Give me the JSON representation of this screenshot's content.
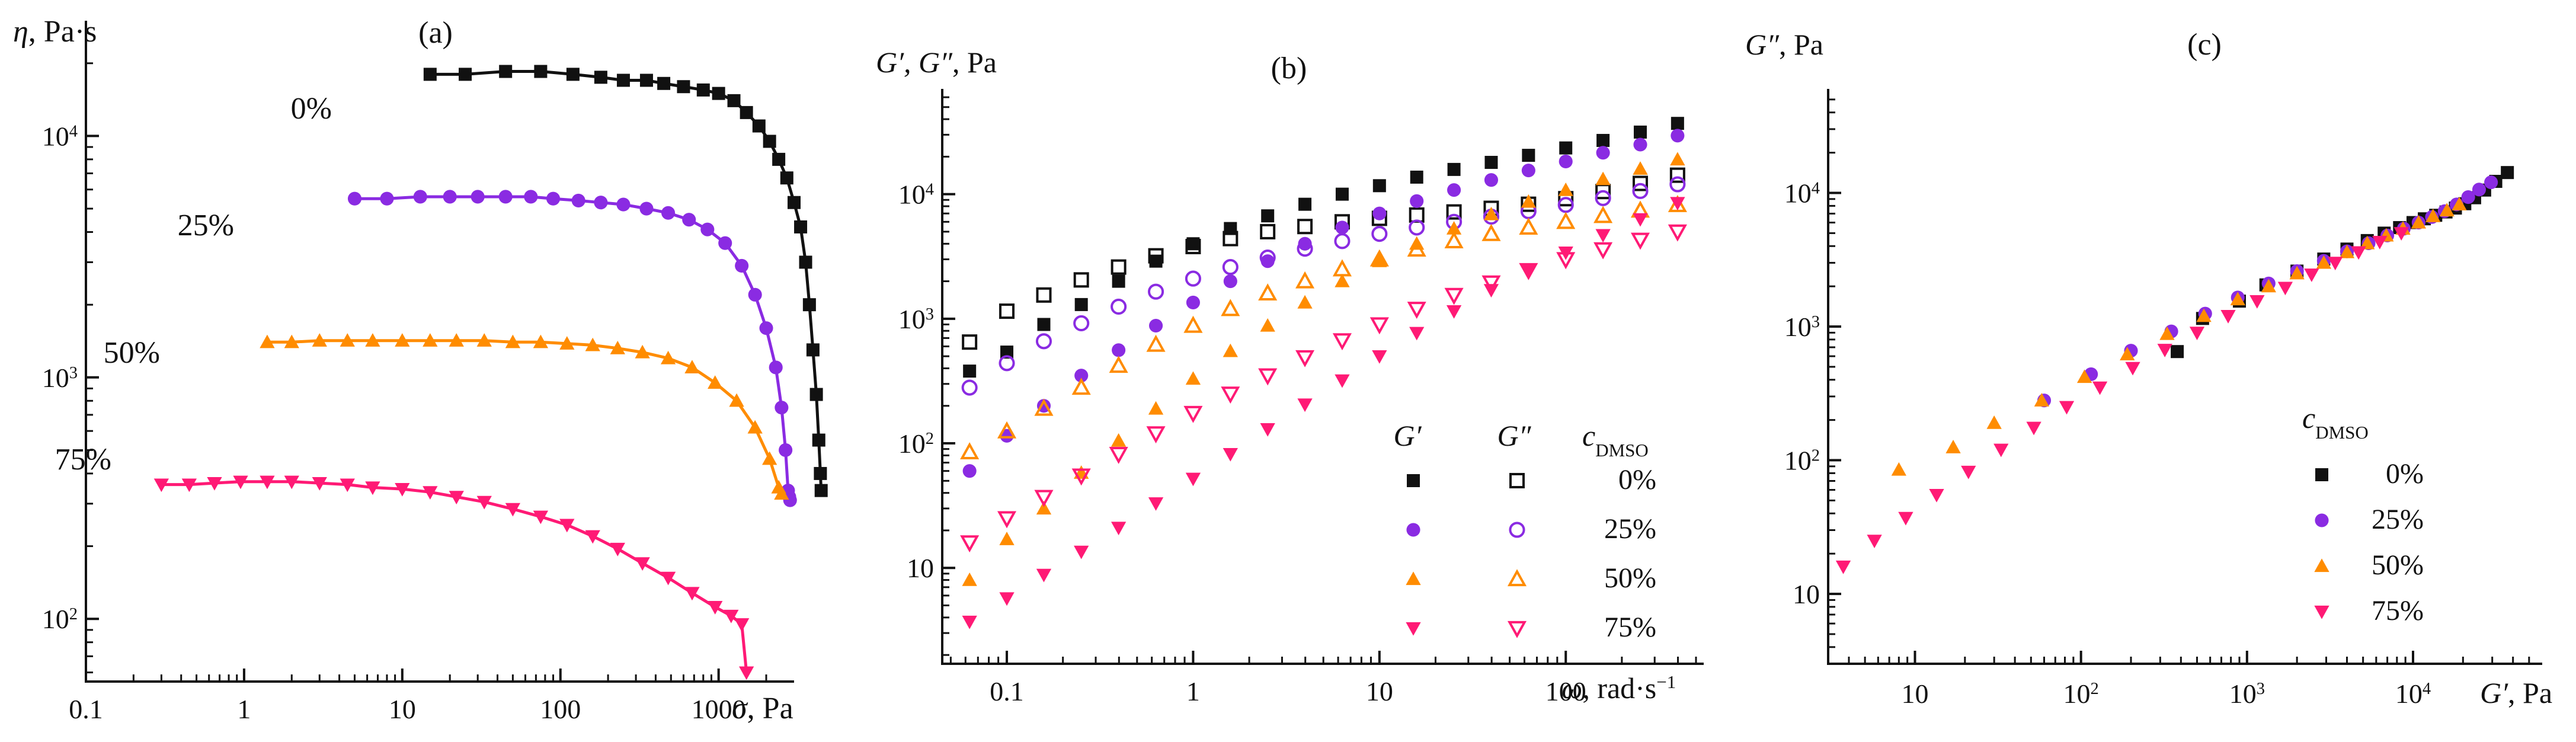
{
  "colors": {
    "0%": "#111111",
    "25%": "#8a2be2",
    "50%": "#ff8c00",
    "75%": "#ff1a75"
  },
  "chart_data": [
    {
      "type": "line",
      "panel": "(a)",
      "ylabel_sym": "η",
      "ylabel_unit": ", Pa·s",
      "xlabel_sym": "σ",
      "xlabel_unit": ", Pa",
      "xscale": "log",
      "yscale": "log",
      "xlim": [
        0.1,
        3000
      ],
      "ylim": [
        55,
        30000
      ],
      "xticks": [
        0.1,
        1,
        10,
        100,
        1000
      ],
      "xtick_labels": [
        "0.1",
        "1",
        "10",
        "100",
        "1000"
      ],
      "yticks": [
        100,
        1000,
        10000
      ],
      "ytick_labels": [
        [
          "10",
          "2"
        ],
        [
          "10",
          "3"
        ],
        [
          "10",
          "4"
        ]
      ],
      "series": [
        {
          "name": "0%",
          "marker": "square",
          "x": [
            15,
            25,
            45,
            75,
            120,
            180,
            250,
            350,
            450,
            600,
            800,
            1000,
            1250,
            1500,
            1800,
            2100,
            2400,
            2700,
            3000,
            3300,
            3550,
            3750,
            3950,
            4150,
            4300,
            4400,
            4450
          ],
          "y": [
            18000,
            18000,
            18500,
            18500,
            18000,
            17500,
            17000,
            17000,
            16500,
            16000,
            15500,
            15000,
            14000,
            12500,
            11000,
            9500,
            8000,
            6700,
            5300,
            4200,
            3000,
            2000,
            1300,
            850,
            550,
            400,
            340
          ]
        },
        {
          "name": "25%",
          "marker": "circle",
          "x": [
            5,
            8,
            13,
            20,
            30,
            45,
            65,
            90,
            130,
            180,
            250,
            350,
            480,
            650,
            850,
            1100,
            1400,
            1700,
            2000,
            2300,
            2500,
            2650,
            2750,
            2800,
            2830
          ],
          "y": [
            5500,
            5500,
            5600,
            5600,
            5600,
            5600,
            5600,
            5500,
            5400,
            5300,
            5200,
            5000,
            4800,
            4500,
            4100,
            3600,
            2900,
            2200,
            1600,
            1100,
            750,
            500,
            340,
            320,
            310
          ]
        },
        {
          "name": "50%",
          "marker": "triangle-up",
          "x": [
            1.4,
            2,
            3,
            4.5,
            6.5,
            10,
            15,
            22,
            33,
            50,
            75,
            110,
            160,
            230,
            330,
            480,
            680,
            950,
            1300,
            1700,
            2100,
            2400,
            2500
          ],
          "y": [
            1400,
            1400,
            1420,
            1420,
            1420,
            1420,
            1420,
            1420,
            1420,
            1400,
            1400,
            1380,
            1360,
            1320,
            1270,
            1200,
            1100,
            950,
            800,
            620,
            460,
            350,
            330
          ]
        },
        {
          "name": "75%",
          "marker": "triangle-down",
          "x": [
            0.3,
            0.45,
            0.65,
            0.95,
            1.4,
            2,
            3,
            4.5,
            6.5,
            10,
            15,
            22,
            33,
            50,
            75,
            110,
            160,
            230,
            330,
            480,
            680,
            950,
            1200,
            1400,
            1500
          ],
          "y": [
            360,
            360,
            365,
            370,
            370,
            370,
            365,
            360,
            350,
            345,
            335,
            320,
            305,
            285,
            265,
            245,
            220,
            195,
            170,
            148,
            128,
            112,
            103,
            95,
            60
          ]
        }
      ],
      "series_labels": [
        "0%",
        "25%",
        "50%",
        "75%"
      ]
    },
    {
      "type": "scatter",
      "panel": "(b)",
      "ylabel_sym": "G′, G″",
      "ylabel_unit": ", Pa",
      "xlabel_sym": "ω",
      "xlabel_unit": ", rad·s",
      "xlabel_sup": "−1",
      "xscale": "log",
      "yscale": "log",
      "xlim": [
        0.045,
        550
      ],
      "ylim": [
        1.7,
        70000
      ],
      "xticks": [
        0.1,
        1,
        10,
        100
      ],
      "xtick_labels": [
        "0.1",
        "1",
        "10",
        "100"
      ],
      "yticks": [
        10,
        100,
        1000,
        10000
      ],
      "ytick_labels": [
        [
          "10",
          ""
        ],
        [
          "10",
          "2"
        ],
        [
          "10",
          "3"
        ],
        [
          "10",
          "4"
        ]
      ],
      "omega": [
        0.0631,
        0.1,
        0.158,
        0.251,
        0.398,
        0.631,
        1,
        1.585,
        2.512,
        3.981,
        6.31,
        10,
        15.85,
        25.12,
        39.81,
        63.1,
        100,
        158.5,
        251.2,
        398.1
      ],
      "series": [
        {
          "name": "G′ 0%",
          "marker": "square",
          "filled": true,
          "conc": "0%",
          "y": [
            380,
            540,
            900,
            1300,
            2000,
            2900,
            4000,
            5300,
            6700,
            8300,
            10000,
            11700,
            13700,
            15800,
            18000,
            20500,
            23500,
            27000,
            31500,
            37000
          ]
        },
        {
          "name": "G″ 0%",
          "marker": "square",
          "filled": false,
          "conc": "0%",
          "y": [
            650,
            1150,
            1550,
            2050,
            2600,
            3200,
            3800,
            4400,
            5000,
            5500,
            6000,
            6400,
            6800,
            7200,
            7700,
            8300,
            9200,
            10500,
            12200,
            14200
          ]
        },
        {
          "name": "G′ 25%",
          "marker": "circle",
          "filled": true,
          "conc": "25%",
          "y": [
            60,
            115,
            200,
            350,
            560,
            880,
            1350,
            2000,
            2900,
            4000,
            5400,
            7000,
            8800,
            10800,
            13000,
            15500,
            18300,
            21500,
            25000,
            29500
          ]
        },
        {
          "name": "G″ 25%",
          "marker": "circle",
          "filled": false,
          "conc": "25%",
          "y": [
            280,
            440,
            660,
            920,
            1250,
            1650,
            2100,
            2600,
            3100,
            3650,
            4200,
            4800,
            5400,
            6000,
            6600,
            7300,
            8200,
            9300,
            10600,
            12000
          ]
        },
        {
          "name": "G′ 50%",
          "marker": "triangle-up",
          "filled": true,
          "conc": "50%",
          "y": [
            8,
            17,
            30,
            58,
            105,
            190,
            330,
            550,
            880,
            1350,
            2000,
            2900,
            4000,
            5300,
            6900,
            8700,
            10800,
            13200,
            16000,
            19000
          ]
        },
        {
          "name": "G″ 50%",
          "marker": "triangle-up",
          "filled": false,
          "conc": "50%",
          "y": [
            85,
            125,
            190,
            280,
            420,
            620,
            880,
            1200,
            1600,
            2000,
            2500,
            3000,
            3600,
            4200,
            4800,
            5400,
            6000,
            6700,
            7400,
            8200
          ]
        },
        {
          "name": "G′ 75%",
          "marker": "triangle-down",
          "filled": true,
          "conc": "75%",
          "y": [
            3.7,
            5.7,
            8.8,
            13.5,
            21,
            33,
            52,
            82,
            130,
            205,
            320,
            500,
            770,
            1150,
            1700,
            2450,
            3400,
            4700,
            6300,
            8500
          ]
        },
        {
          "name": "G″ 75%",
          "marker": "triangle-down",
          "filled": false,
          "conc": "75%",
          "y": [
            16,
            25,
            37,
            55,
            82,
            120,
            175,
            250,
            350,
            490,
            670,
            900,
            1200,
            1550,
            1950,
            2450,
            3000,
            3600,
            4300,
            5000
          ]
        }
      ],
      "legend": {
        "header_gp": "G′",
        "header_gpp": "G″",
        "header_c": "c",
        "header_c_sub": "DMSO",
        "rows": [
          "0%",
          "25%",
          "50%",
          "75%"
        ]
      }
    },
    {
      "type": "scatter",
      "panel": "(c)",
      "ylabel_sym": "G″",
      "ylabel_unit": ", Pa",
      "xlabel_sym": "G′",
      "xlabel_unit": ", Pa",
      "xscale": "log",
      "yscale": "log",
      "xlim": [
        3,
        60000
      ],
      "ylim": [
        3,
        60000
      ],
      "xticks": [
        10,
        100,
        1000,
        10000
      ],
      "xtick_labels": [
        [
          "10",
          ""
        ],
        [
          "10",
          "2"
        ],
        [
          "10",
          "3"
        ],
        [
          "10",
          "4"
        ]
      ],
      "yticks": [
        10,
        100,
        1000,
        10000
      ],
      "ytick_labels": [
        [
          "10",
          ""
        ],
        [
          "10",
          "2"
        ],
        [
          "10",
          "3"
        ],
        [
          "10",
          "4"
        ]
      ],
      "series": [
        {
          "name": "0%",
          "marker": "square",
          "x": [
            380,
            540,
            900,
            1300,
            2000,
            2900,
            4000,
            5300,
            6700,
            8300,
            10000,
            11700,
            13700,
            15800,
            18000,
            20500,
            23500,
            27000,
            31500,
            37000
          ],
          "y": [
            650,
            1150,
            1550,
            2050,
            2600,
            3200,
            3800,
            4400,
            5000,
            5500,
            6000,
            6400,
            6800,
            7200,
            7700,
            8300,
            9200,
            10500,
            12200,
            14200
          ]
        },
        {
          "name": "25%",
          "marker": "circle",
          "x": [
            60,
            115,
            200,
            350,
            560,
            880,
            1350,
            2000,
            2900,
            4000,
            5400,
            7000,
            8800,
            10800,
            13000,
            15500,
            18300,
            21500,
            25000,
            29500
          ],
          "y": [
            280,
            440,
            660,
            920,
            1250,
            1650,
            2100,
            2600,
            3100,
            3650,
            4200,
            4800,
            5400,
            6000,
            6600,
            7300,
            8200,
            9300,
            10600,
            12000
          ]
        },
        {
          "name": "50%",
          "marker": "triangle-up",
          "x": [
            8,
            17,
            30,
            58,
            105,
            190,
            330,
            550,
            880,
            1350,
            2000,
            2900,
            4000,
            5300,
            6900,
            8700,
            10800,
            13200,
            16000,
            19000
          ],
          "y": [
            85,
            125,
            190,
            280,
            420,
            620,
            880,
            1200,
            1600,
            2000,
            2500,
            3000,
            3600,
            4200,
            4800,
            5400,
            6000,
            6700,
            7400,
            8200
          ]
        },
        {
          "name": "75%",
          "marker": "triangle-down",
          "x": [
            3.7,
            5.7,
            8.8,
            13.5,
            21,
            33,
            52,
            82,
            130,
            205,
            320,
            500,
            770,
            1150,
            1700,
            2450,
            3400,
            4700,
            6300,
            8500
          ],
          "y": [
            16,
            25,
            37,
            55,
            82,
            120,
            175,
            250,
            350,
            490,
            670,
            900,
            1200,
            1550,
            1950,
            2450,
            3000,
            3600,
            4300,
            5000
          ]
        }
      ],
      "legend": {
        "header_c": "c",
        "header_c_sub": "DMSO",
        "rows": [
          "0%",
          "25%",
          "50%",
          "75%"
        ]
      }
    }
  ]
}
